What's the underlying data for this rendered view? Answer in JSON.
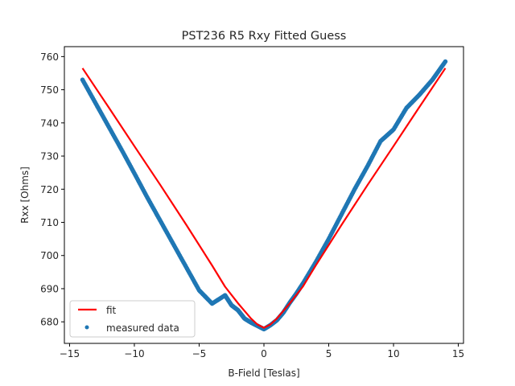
{
  "chart_data": {
    "type": "scatter",
    "title": "PST236 R5 Rxy Fitted Guess",
    "xlabel": "B-Field [Teslas]",
    "ylabel": "Rxx [Ohms]",
    "xlim": [
      -15.4,
      15.4
    ],
    "ylim": [
      673.5,
      763
    ],
    "xticks": [
      -15,
      -10,
      -5,
      0,
      5,
      10,
      15
    ],
    "xtick_labels": [
      "−15",
      "−10",
      "−5",
      "0",
      "5",
      "10",
      "15"
    ],
    "yticks": [
      680,
      690,
      700,
      710,
      720,
      730,
      740,
      750,
      760
    ],
    "ytick_labels": [
      "680",
      "690",
      "700",
      "710",
      "720",
      "730",
      "740",
      "750",
      "760"
    ],
    "grid": false,
    "legend_position": "lower-left",
    "series": [
      {
        "name": "fit",
        "kind": "line",
        "color": "#ff0000",
        "x": [
          -14,
          -12,
          -10,
          -8,
          -6,
          -4,
          -3,
          -2,
          -1,
          -0.5,
          0,
          0.5,
          1,
          2,
          3,
          4,
          6,
          8,
          10,
          12,
          14
        ],
        "y": [
          756.5,
          744.8,
          733.0,
          721.3,
          709.3,
          697.0,
          690.6,
          685.6,
          681.0,
          679.2,
          678.2,
          679.2,
          681.0,
          685.6,
          690.6,
          697.0,
          709.3,
          721.3,
          733.0,
          744.8,
          756.5
        ]
      },
      {
        "name": "measured data",
        "kind": "scatter",
        "color": "#1f77b4",
        "x": [
          -14,
          -13,
          -12,
          -11,
          -10,
          -9,
          -8,
          -7,
          -6,
          -5,
          -4,
          -3,
          -2.5,
          -2,
          -1.5,
          -1,
          -0.5,
          0,
          0.5,
          1,
          1.5,
          2,
          2.5,
          3,
          4,
          5,
          6,
          7,
          8,
          9,
          10,
          11,
          12,
          13,
          14
        ],
        "y": [
          753.0,
          746.0,
          739.0,
          732.0,
          724.8,
          717.5,
          710.5,
          703.5,
          696.5,
          689.5,
          685.5,
          688.0,
          685.0,
          683.5,
          681.0,
          679.8,
          678.8,
          677.8,
          679.0,
          680.5,
          682.8,
          685.8,
          688.5,
          691.5,
          698.0,
          705.0,
          712.5,
          720.0,
          727.0,
          734.5,
          738.0,
          744.5,
          748.5,
          753.0,
          758.5
        ]
      }
    ]
  }
}
